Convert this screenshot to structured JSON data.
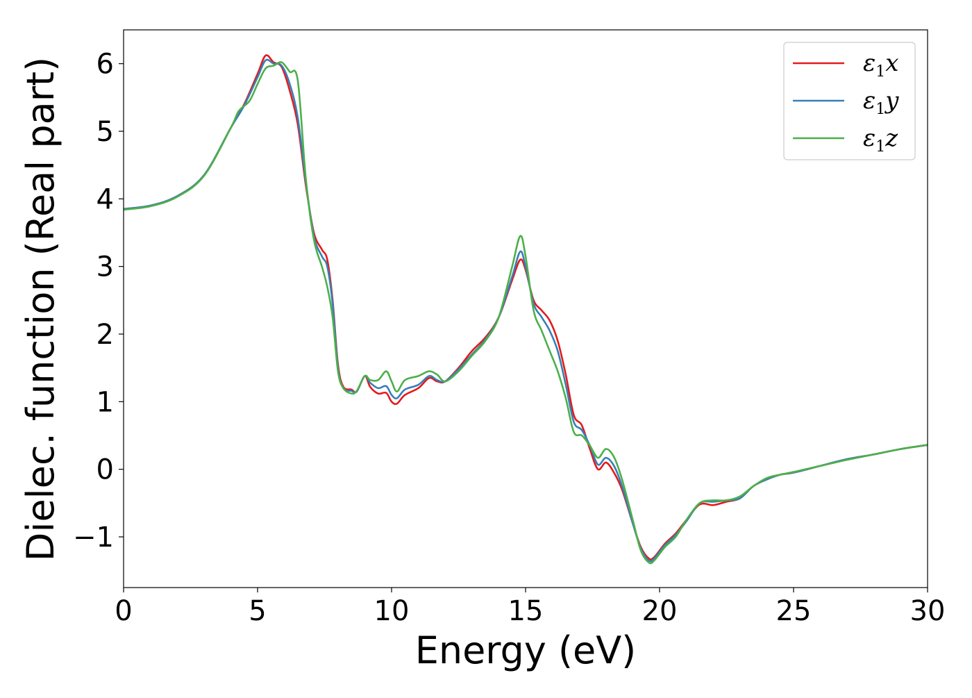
{
  "chart_data": {
    "type": "line",
    "title": "",
    "xlabel": "Energy (eV)",
    "ylabel": "Dielec. function (Real part)",
    "xlim": [
      0,
      30
    ],
    "ylim": [
      -1.75,
      6.5
    ],
    "xticks": [
      0,
      5,
      10,
      15,
      20,
      25,
      30
    ],
    "xtick_labels": [
      "0",
      "5",
      "10",
      "15",
      "20",
      "25",
      "30"
    ],
    "yticks": [
      -1,
      0,
      1,
      2,
      3,
      4,
      5,
      6
    ],
    "ytick_labels": [
      "−1",
      "0",
      "1",
      "2",
      "3",
      "4",
      "5",
      "6"
    ],
    "grid": false,
    "legend_position": "top-right",
    "series": [
      {
        "name": "ε1x",
        "legend_main": "ε",
        "legend_sub": "1",
        "legend_suffix": "x",
        "color": "#e41a1c",
        "points": [
          [
            0,
            3.85
          ],
          [
            1,
            3.9
          ],
          [
            2,
            4.04
          ],
          [
            3,
            4.35
          ],
          [
            4,
            5.05
          ],
          [
            4.5,
            5.4
          ],
          [
            5,
            5.85
          ],
          [
            5.3,
            6.12
          ],
          [
            5.6,
            6.02
          ],
          [
            5.9,
            5.95
          ],
          [
            6.2,
            5.6
          ],
          [
            6.5,
            5.1
          ],
          [
            6.8,
            4.2
          ],
          [
            7.1,
            3.5
          ],
          [
            7.4,
            3.25
          ],
          [
            7.6,
            3.1
          ],
          [
            7.8,
            2.5
          ],
          [
            8.0,
            1.55
          ],
          [
            8.2,
            1.22
          ],
          [
            8.5,
            1.18
          ],
          [
            8.7,
            1.15
          ],
          [
            9.0,
            1.38
          ],
          [
            9.2,
            1.22
          ],
          [
            9.5,
            1.12
          ],
          [
            9.8,
            1.13
          ],
          [
            10.0,
            1.0
          ],
          [
            10.2,
            0.97
          ],
          [
            10.5,
            1.1
          ],
          [
            11.0,
            1.2
          ],
          [
            11.4,
            1.35
          ],
          [
            11.7,
            1.3
          ],
          [
            12.0,
            1.3
          ],
          [
            12.5,
            1.5
          ],
          [
            13.0,
            1.75
          ],
          [
            13.5,
            1.95
          ],
          [
            14.0,
            2.25
          ],
          [
            14.5,
            2.8
          ],
          [
            14.8,
            3.1
          ],
          [
            15.0,
            2.95
          ],
          [
            15.3,
            2.5
          ],
          [
            15.6,
            2.35
          ],
          [
            15.9,
            2.2
          ],
          [
            16.2,
            1.9
          ],
          [
            16.5,
            1.4
          ],
          [
            16.8,
            0.8
          ],
          [
            17.1,
            0.65
          ],
          [
            17.4,
            0.3
          ],
          [
            17.7,
            0.0
          ],
          [
            18.0,
            0.1
          ],
          [
            18.3,
            -0.05
          ],
          [
            18.6,
            -0.3
          ],
          [
            19.0,
            -0.8
          ],
          [
            19.3,
            -1.15
          ],
          [
            19.6,
            -1.32
          ],
          [
            19.8,
            -1.3
          ],
          [
            20.2,
            -1.1
          ],
          [
            20.6,
            -0.95
          ],
          [
            21.0,
            -0.75
          ],
          [
            21.5,
            -0.52
          ],
          [
            22.0,
            -0.53
          ],
          [
            22.5,
            -0.48
          ],
          [
            23.0,
            -0.43
          ],
          [
            23.5,
            -0.25
          ],
          [
            24.0,
            -0.15
          ],
          [
            24.5,
            -0.08
          ],
          [
            25.0,
            -0.05
          ],
          [
            26.0,
            0.05
          ],
          [
            27.0,
            0.15
          ],
          [
            28.0,
            0.22
          ],
          [
            29.0,
            0.3
          ],
          [
            30.0,
            0.36
          ]
        ]
      },
      {
        "name": "ε1y",
        "legend_main": "ε",
        "legend_sub": "1",
        "legend_suffix": "y",
        "color": "#377eb8",
        "points": [
          [
            0,
            3.85
          ],
          [
            1,
            3.9
          ],
          [
            2,
            4.04
          ],
          [
            3,
            4.35
          ],
          [
            4,
            5.05
          ],
          [
            4.5,
            5.38
          ],
          [
            5,
            5.8
          ],
          [
            5.3,
            6.05
          ],
          [
            5.6,
            6.0
          ],
          [
            5.9,
            5.97
          ],
          [
            6.2,
            5.7
          ],
          [
            6.5,
            5.2
          ],
          [
            6.8,
            4.25
          ],
          [
            7.1,
            3.45
          ],
          [
            7.4,
            3.15
          ],
          [
            7.6,
            3.0
          ],
          [
            7.8,
            2.45
          ],
          [
            8.0,
            1.5
          ],
          [
            8.2,
            1.2
          ],
          [
            8.5,
            1.16
          ],
          [
            8.7,
            1.15
          ],
          [
            9.0,
            1.38
          ],
          [
            9.2,
            1.28
          ],
          [
            9.5,
            1.2
          ],
          [
            9.8,
            1.23
          ],
          [
            10.0,
            1.1
          ],
          [
            10.2,
            1.05
          ],
          [
            10.5,
            1.18
          ],
          [
            11.0,
            1.25
          ],
          [
            11.4,
            1.38
          ],
          [
            11.7,
            1.32
          ],
          [
            12.0,
            1.3
          ],
          [
            12.5,
            1.48
          ],
          [
            13.0,
            1.7
          ],
          [
            13.5,
            1.92
          ],
          [
            14.0,
            2.25
          ],
          [
            14.5,
            2.85
          ],
          [
            14.8,
            3.22
          ],
          [
            15.0,
            3.0
          ],
          [
            15.3,
            2.45
          ],
          [
            15.6,
            2.25
          ],
          [
            15.9,
            2.05
          ],
          [
            16.2,
            1.75
          ],
          [
            16.5,
            1.25
          ],
          [
            16.8,
            0.7
          ],
          [
            17.1,
            0.58
          ],
          [
            17.4,
            0.35
          ],
          [
            17.7,
            0.07
          ],
          [
            18.0,
            0.17
          ],
          [
            18.3,
            0.05
          ],
          [
            18.6,
            -0.25
          ],
          [
            19.0,
            -0.8
          ],
          [
            19.3,
            -1.17
          ],
          [
            19.6,
            -1.35
          ],
          [
            19.8,
            -1.32
          ],
          [
            20.2,
            -1.12
          ],
          [
            20.6,
            -0.97
          ],
          [
            21.0,
            -0.77
          ],
          [
            21.5,
            -0.5
          ],
          [
            22.0,
            -0.48
          ],
          [
            22.5,
            -0.46
          ],
          [
            23.0,
            -0.43
          ],
          [
            23.5,
            -0.25
          ],
          [
            24.0,
            -0.15
          ],
          [
            24.5,
            -0.08
          ],
          [
            25.0,
            -0.05
          ],
          [
            26.0,
            0.05
          ],
          [
            27.0,
            0.15
          ],
          [
            28.0,
            0.22
          ],
          [
            29.0,
            0.3
          ],
          [
            30.0,
            0.36
          ]
        ]
      },
      {
        "name": "ε1z",
        "legend_main": "ε",
        "legend_sub": "1",
        "legend_suffix": "z",
        "color": "#4daf4a",
        "points": [
          [
            0,
            3.84
          ],
          [
            1,
            3.89
          ],
          [
            2,
            4.03
          ],
          [
            3,
            4.34
          ],
          [
            4,
            5.05
          ],
          [
            4.3,
            5.3
          ],
          [
            4.7,
            5.45
          ],
          [
            5.0,
            5.7
          ],
          [
            5.3,
            5.93
          ],
          [
            5.6,
            5.97
          ],
          [
            5.9,
            6.02
          ],
          [
            6.2,
            5.88
          ],
          [
            6.5,
            5.75
          ],
          [
            6.8,
            4.3
          ],
          [
            7.1,
            3.4
          ],
          [
            7.4,
            3.0
          ],
          [
            7.6,
            2.7
          ],
          [
            7.8,
            2.25
          ],
          [
            8.0,
            1.45
          ],
          [
            8.2,
            1.2
          ],
          [
            8.5,
            1.12
          ],
          [
            8.7,
            1.16
          ],
          [
            9.0,
            1.38
          ],
          [
            9.2,
            1.32
          ],
          [
            9.5,
            1.32
          ],
          [
            9.8,
            1.45
          ],
          [
            10.0,
            1.3
          ],
          [
            10.2,
            1.15
          ],
          [
            10.5,
            1.32
          ],
          [
            11.0,
            1.38
          ],
          [
            11.4,
            1.45
          ],
          [
            11.7,
            1.4
          ],
          [
            12.0,
            1.3
          ],
          [
            12.5,
            1.45
          ],
          [
            13.0,
            1.68
          ],
          [
            13.5,
            1.9
          ],
          [
            14.0,
            2.25
          ],
          [
            14.5,
            3.0
          ],
          [
            14.8,
            3.45
          ],
          [
            15.0,
            3.15
          ],
          [
            15.3,
            2.35
          ],
          [
            15.6,
            2.05
          ],
          [
            15.9,
            1.75
          ],
          [
            16.2,
            1.45
          ],
          [
            16.5,
            1.05
          ],
          [
            16.8,
            0.55
          ],
          [
            17.1,
            0.5
          ],
          [
            17.4,
            0.35
          ],
          [
            17.7,
            0.17
          ],
          [
            18.0,
            0.3
          ],
          [
            18.3,
            0.18
          ],
          [
            18.6,
            -0.15
          ],
          [
            19.0,
            -0.75
          ],
          [
            19.3,
            -1.2
          ],
          [
            19.6,
            -1.38
          ],
          [
            19.8,
            -1.35
          ],
          [
            20.2,
            -1.15
          ],
          [
            20.6,
            -1.0
          ],
          [
            21.0,
            -0.75
          ],
          [
            21.5,
            -0.5
          ],
          [
            22.0,
            -0.46
          ],
          [
            22.5,
            -0.46
          ],
          [
            23.0,
            -0.4
          ],
          [
            23.5,
            -0.25
          ],
          [
            24.0,
            -0.13
          ],
          [
            24.5,
            -0.08
          ],
          [
            25.0,
            -0.04
          ],
          [
            26.0,
            0.05
          ],
          [
            27.0,
            0.14
          ],
          [
            28.0,
            0.22
          ],
          [
            29.0,
            0.3
          ],
          [
            30.0,
            0.36
          ]
        ]
      }
    ]
  }
}
